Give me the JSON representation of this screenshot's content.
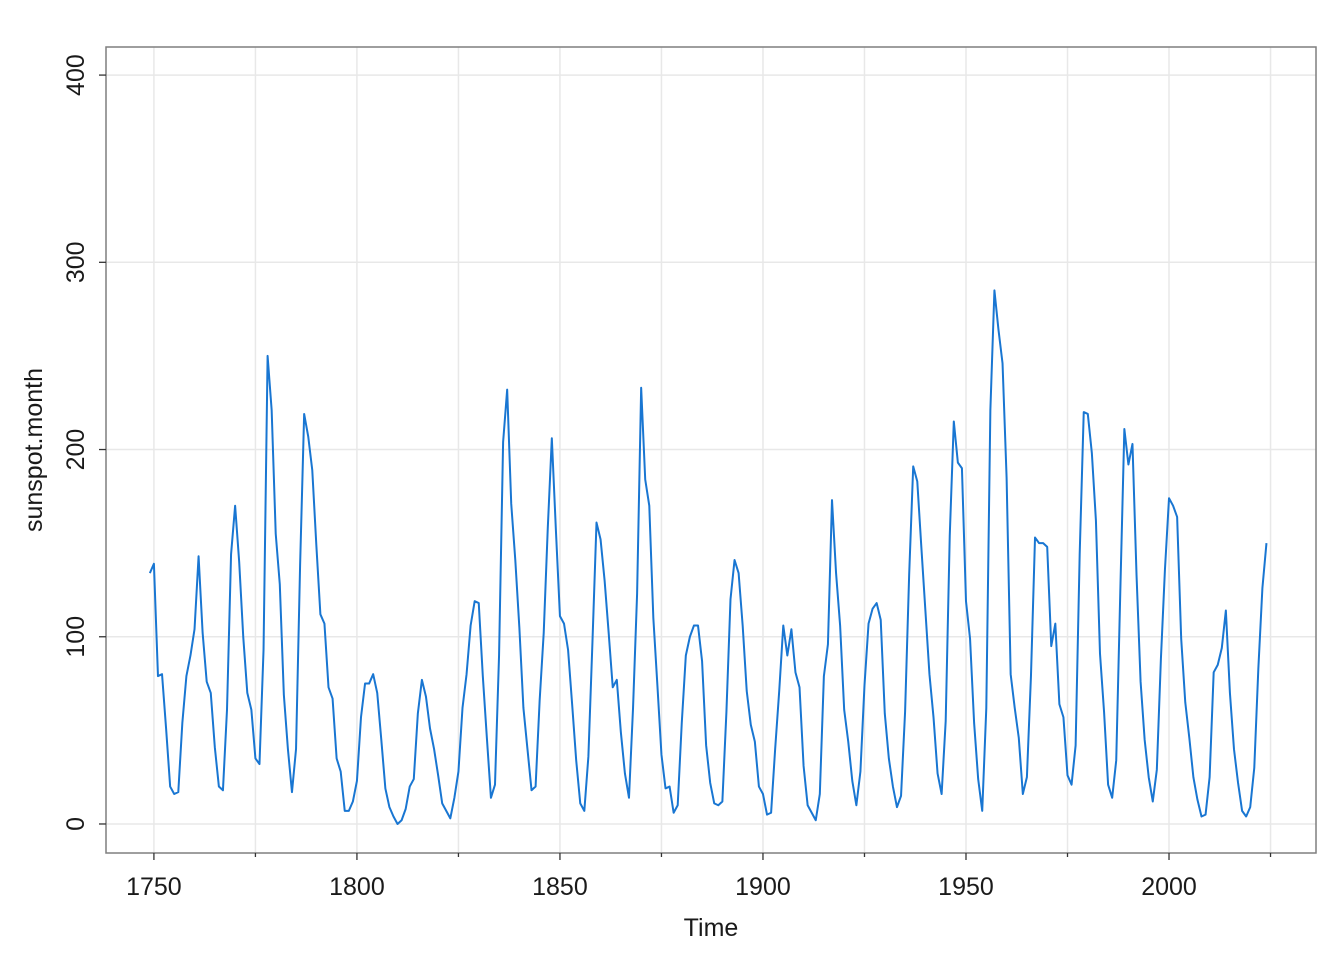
{
  "chart_data": {
    "type": "line",
    "xlabel": "Time",
    "ylabel": "sunspot.month",
    "color": "#1976d2",
    "x": [
      1749,
      1750,
      1751,
      1752,
      1753,
      1754,
      1755,
      1756,
      1757,
      1758,
      1759,
      1760,
      1761,
      1762,
      1763,
      1764,
      1765,
      1766,
      1767,
      1768,
      1769,
      1770,
      1771,
      1772,
      1773,
      1774,
      1775,
      1776,
      1777,
      1778,
      1779,
      1780,
      1781,
      1782,
      1783,
      1784,
      1785,
      1786,
      1787,
      1788,
      1789,
      1790,
      1791,
      1792,
      1793,
      1794,
      1795,
      1796,
      1797,
      1798,
      1799,
      1800,
      1801,
      1802,
      1803,
      1804,
      1805,
      1806,
      1807,
      1808,
      1809,
      1810,
      1811,
      1812,
      1813,
      1814,
      1815,
      1816,
      1817,
      1818,
      1819,
      1820,
      1821,
      1822,
      1823,
      1824,
      1825,
      1826,
      1827,
      1828,
      1829,
      1830,
      1831,
      1832,
      1833,
      1834,
      1835,
      1836,
      1837,
      1838,
      1839,
      1840,
      1841,
      1842,
      1843,
      1844,
      1845,
      1846,
      1847,
      1848,
      1849,
      1850,
      1851,
      1852,
      1853,
      1854,
      1855,
      1856,
      1857,
      1858,
      1859,
      1860,
      1861,
      1862,
      1863,
      1864,
      1865,
      1866,
      1867,
      1868,
      1869,
      1870,
      1871,
      1872,
      1873,
      1874,
      1875,
      1876,
      1877,
      1878,
      1879,
      1880,
      1881,
      1882,
      1883,
      1884,
      1885,
      1886,
      1887,
      1888,
      1889,
      1890,
      1891,
      1892,
      1893,
      1894,
      1895,
      1896,
      1897,
      1898,
      1899,
      1900,
      1901,
      1902,
      1903,
      1904,
      1905,
      1906,
      1907,
      1908,
      1909,
      1910,
      1911,
      1912,
      1913,
      1914,
      1915,
      1916,
      1917,
      1918,
      1919,
      1920,
      1921,
      1922,
      1923,
      1924,
      1925,
      1926,
      1927,
      1928,
      1929,
      1930,
      1931,
      1932,
      1933,
      1934,
      1935,
      1936,
      1937,
      1938,
      1939,
      1940,
      1941,
      1942,
      1943,
      1944,
      1945,
      1946,
      1947,
      1948,
      1949,
      1950,
      1951,
      1952,
      1953,
      1954,
      1955,
      1956,
      1957,
      1958,
      1959,
      1960,
      1961,
      1962,
      1963,
      1964,
      1965,
      1966,
      1967,
      1968,
      1969,
      1970,
      1971,
      1972,
      1973,
      1974,
      1975,
      1976,
      1977,
      1978,
      1979,
      1980,
      1981,
      1982,
      1983,
      1984,
      1985,
      1986,
      1987,
      1988,
      1989,
      1990,
      1991,
      1992,
      1993,
      1994,
      1995,
      1996,
      1997,
      1998,
      1999,
      2000,
      2001,
      2002,
      2003,
      2004,
      2005,
      2006,
      2007,
      2008,
      2009,
      2010,
      2011,
      2012,
      2013,
      2014,
      2015,
      2016,
      2017,
      2018,
      2019,
      2020,
      2021,
      2022,
      2023,
      2024
    ],
    "values": [
      134,
      139,
      79,
      80,
      51,
      20,
      16,
      17,
      54,
      79,
      90,
      104,
      143,
      102,
      76,
      70,
      41,
      20,
      18,
      61,
      144,
      170,
      140,
      100,
      70,
      61,
      35,
      32,
      93,
      250,
      221,
      155,
      128,
      69,
      40,
      17,
      40,
      138,
      219,
      207,
      189,
      149,
      112,
      107,
      73,
      67,
      35,
      28,
      7,
      7,
      12,
      23,
      57,
      75,
      75,
      80,
      70,
      45,
      19,
      9,
      4,
      0,
      2,
      8,
      20,
      24,
      59,
      77,
      68,
      51,
      40,
      26,
      11,
      7,
      3,
      14,
      28,
      62,
      80,
      106,
      119,
      118,
      79,
      46,
      14,
      21,
      90,
      204,
      232,
      171,
      141,
      105,
      62,
      40,
      18,
      20,
      66,
      102,
      158,
      206,
      157,
      111,
      107,
      93,
      64,
      34,
      11,
      7,
      36,
      97,
      161,
      152,
      130,
      102,
      73,
      77,
      49,
      27,
      14,
      62,
      123,
      233,
      184,
      170,
      110,
      74,
      37,
      19,
      20,
      6,
      10,
      54,
      90,
      100,
      106,
      106,
      87,
      42,
      22,
      11,
      10,
      12,
      60,
      120,
      141,
      134,
      106,
      71,
      53,
      44,
      20,
      16,
      5,
      6,
      40,
      71,
      106,
      90,
      104,
      81,
      73,
      31,
      10,
      6,
      2,
      16,
      79,
      96,
      173,
      134,
      106,
      61,
      44,
      23,
      10,
      28,
      74,
      107,
      115,
      118,
      109,
      59,
      35,
      20,
      9,
      15,
      60,
      133,
      191,
      183,
      148,
      114,
      80,
      57,
      27,
      16,
      55,
      154,
      215,
      193,
      190,
      119,
      99,
      54,
      24,
      7,
      62,
      221,
      285,
      264,
      246,
      185,
      80,
      62,
      46,
      16,
      25,
      79,
      153,
      150,
      150,
      148,
      95,
      107,
      64,
      57,
      26,
      21,
      42,
      144,
      220,
      219,
      198,
      162,
      91,
      60,
      21,
      14,
      34,
      124,
      211,
      192,
      203,
      133,
      76,
      45,
      25,
      12,
      29,
      88,
      136,
      174,
      170,
      164,
      99,
      65,
      46,
      25,
      13,
      4,
      5,
      25,
      81,
      85,
      94,
      114,
      70,
      40,
      22,
      7,
      4,
      9,
      30,
      83,
      126,
      150
    ],
    "xlim": [
      1738.2,
      2036.2
    ],
    "xticks": [
      1750,
      1800,
      1850,
      1900,
      1950,
      2000
    ],
    "xminorticks": [
      1775,
      1825,
      1875,
      1925,
      1975,
      2025
    ],
    "ylim": [
      -15.5,
      415
    ],
    "yticks": [
      0,
      100,
      200,
      300,
      400
    ],
    "grid": true
  }
}
